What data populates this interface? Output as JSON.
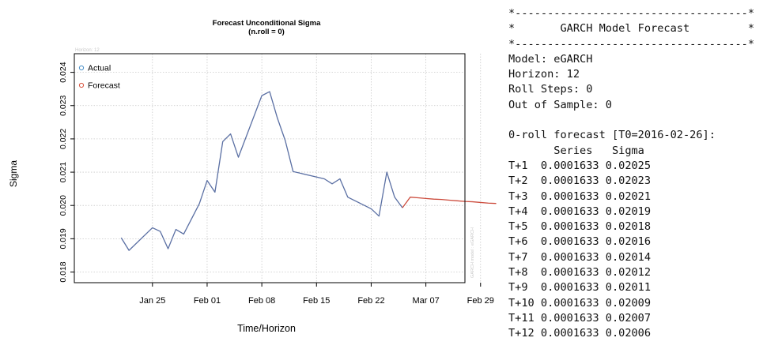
{
  "chart_data": {
    "type": "line",
    "title": "Forecast Unconditional Sigma",
    "subtitle": "(n.roll = 0)",
    "corner_label": "Horizon: 12",
    "side_label": "GARCH model : eGARCH",
    "xlabel": "Time/Horizon",
    "ylabel": "Sigma",
    "ylim": [
      0.01768,
      0.02456
    ],
    "xlim": [
      -10,
      40
    ],
    "yticks": [
      "0.018",
      "0.019",
      "0.020",
      "0.021",
      "0.022",
      "0.023",
      "0.024"
    ],
    "xticks": [
      {
        "x": 0,
        "label": "Jan 25"
      },
      {
        "x": 7,
        "label": "Feb 01"
      },
      {
        "x": 14,
        "label": "Feb 08"
      },
      {
        "x": 21,
        "label": "Feb 15"
      },
      {
        "x": 28,
        "label": "Feb 22"
      },
      {
        "x": 35,
        "label": "Mar 07"
      },
      {
        "x": 42,
        "label": "Feb 29"
      }
    ],
    "legend": {
      "position": "top-left",
      "entries": [
        "Actual",
        "Forecast"
      ]
    },
    "grid": true,
    "series": [
      {
        "name": "Actual",
        "color": "#5a6fa3",
        "points": [
          [
            -4,
            0.01903
          ],
          [
            -3,
            0.01865
          ],
          [
            0,
            0.01933
          ],
          [
            1,
            0.01922
          ],
          [
            2,
            0.0187
          ],
          [
            3,
            0.01928
          ],
          [
            4,
            0.01914
          ],
          [
            6,
            0.02005
          ],
          [
            7,
            0.02075
          ],
          [
            8,
            0.0204
          ],
          [
            9,
            0.02192
          ],
          [
            10,
            0.02215
          ],
          [
            11,
            0.02145
          ],
          [
            14,
            0.0233
          ],
          [
            15,
            0.02342
          ],
          [
            16,
            0.02262
          ],
          [
            17,
            0.02195
          ],
          [
            18,
            0.02102
          ],
          [
            22,
            0.0208
          ],
          [
            23,
            0.02065
          ],
          [
            24,
            0.0208
          ],
          [
            25,
            0.02025
          ],
          [
            28,
            0.0199
          ],
          [
            29,
            0.01968
          ],
          [
            30,
            0.021
          ],
          [
            31,
            0.02025
          ],
          [
            32,
            0.01993
          ]
        ]
      },
      {
        "name": "Forecast",
        "color": "#cc4b3c",
        "points": [
          [
            32,
            0.01993
          ],
          [
            33,
            0.02025
          ],
          [
            34,
            0.02023
          ],
          [
            35,
            0.02021
          ],
          [
            36,
            0.02019
          ],
          [
            37,
            0.02018
          ],
          [
            38,
            0.02016
          ],
          [
            39,
            0.02014
          ],
          [
            40,
            0.02012
          ],
          [
            41,
            0.02011
          ],
          [
            42,
            0.02009
          ],
          [
            43,
            0.02007
          ],
          [
            44,
            0.02006
          ]
        ]
      }
    ]
  },
  "console": {
    "border_top": "*------------------------------------*",
    "title_line": "*       GARCH Model Forecast         *",
    "border_bottom": "*------------------------------------*",
    "model": "Model: eGARCH",
    "horizon": "Horizon: 12",
    "roll_steps": "Roll Steps: 0",
    "out_of_sample": "Out of Sample: 0",
    "forecast_header": "0-roll forecast [T0=2016-02-26]:",
    "columns_header": "       Series   Sigma",
    "rows": [
      "T+1  0.0001633 0.02025",
      "T+2  0.0001633 0.02023",
      "T+3  0.0001633 0.02021",
      "T+4  0.0001633 0.02019",
      "T+5  0.0001633 0.02018",
      "T+6  0.0001633 0.02016",
      "T+7  0.0001633 0.02014",
      "T+8  0.0001633 0.02012",
      "T+9  0.0001633 0.02011",
      "T+10 0.0001633 0.02009",
      "T+11 0.0001633 0.02007",
      "T+12 0.0001633 0.02006"
    ]
  }
}
